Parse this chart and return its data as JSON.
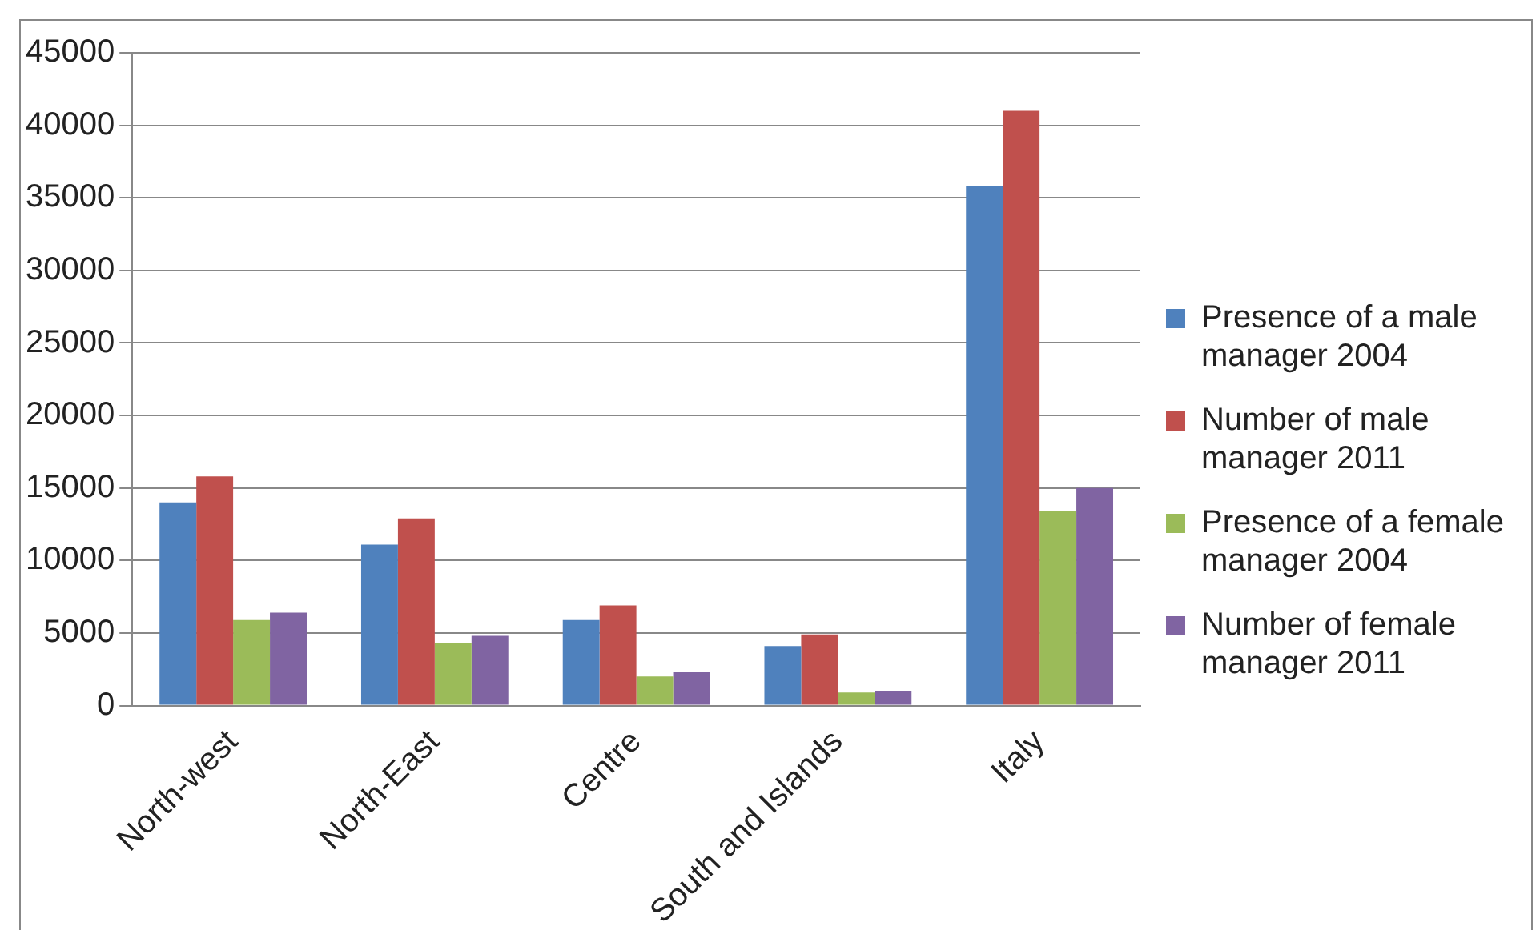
{
  "chart_data": {
    "type": "bar",
    "categories": [
      "North-west",
      "North-East",
      "Centre",
      "South and Islands",
      "Italy"
    ],
    "series": [
      {
        "name": "Presence of a male manager 2004",
        "color": "#4f81bd",
        "values": [
          14000,
          11100,
          5900,
          4100,
          35800
        ]
      },
      {
        "name": "Number of male manager 2011",
        "color": "#c0504d",
        "values": [
          15800,
          12900,
          6900,
          4900,
          41000
        ]
      },
      {
        "name": "Presence of a female manager 2004",
        "color": "#9bbb59",
        "values": [
          5900,
          4300,
          2000,
          900,
          13400
        ]
      },
      {
        "name": "Number of female manager 2011",
        "color": "#8064a2",
        "values": [
          6400,
          4800,
          2300,
          1000,
          15000
        ]
      }
    ],
    "ylim": [
      0,
      45000
    ],
    "yticks": [
      0,
      5000,
      10000,
      15000,
      20000,
      25000,
      30000,
      35000,
      40000,
      45000
    ],
    "grid": "y",
    "legend": "right"
  }
}
